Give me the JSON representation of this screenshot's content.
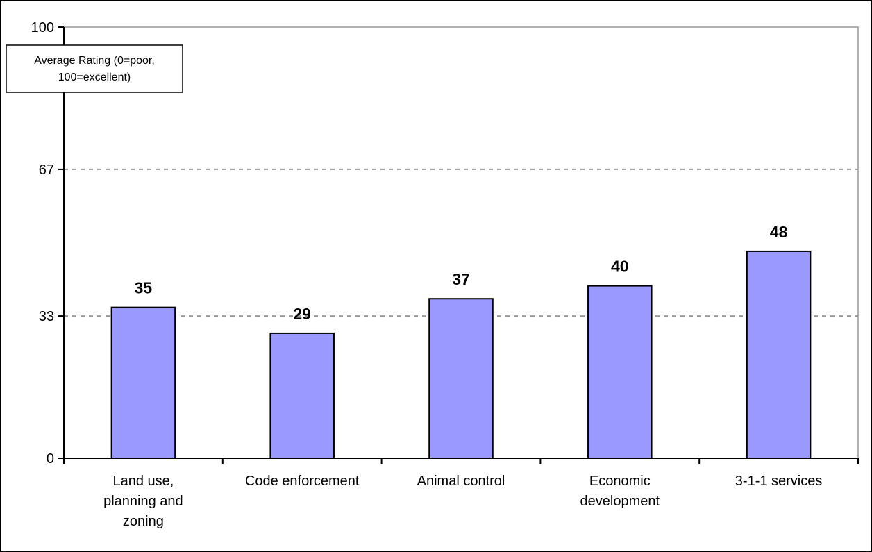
{
  "chart_data": {
    "type": "bar",
    "categories": [
      [
        "Land use,",
        "planning and",
        "zoning"
      ],
      [
        "Code enforcement"
      ],
      [
        "Animal control"
      ],
      [
        "Economic",
        "development"
      ],
      [
        "3-1-1 services"
      ]
    ],
    "values": [
      35,
      29,
      37,
      40,
      48
    ],
    "ylim": [
      0,
      100
    ],
    "yticks": [
      0,
      33,
      67,
      100
    ],
    "ylabel": [
      "Average Rating (0=poor,",
      "100=excellent)"
    ],
    "grid": "dashed-horizontal",
    "colors": {
      "bar_fill": "#9999ff",
      "bar_stroke": "#000000",
      "grid": "#999999",
      "axis": "#000000"
    }
  }
}
